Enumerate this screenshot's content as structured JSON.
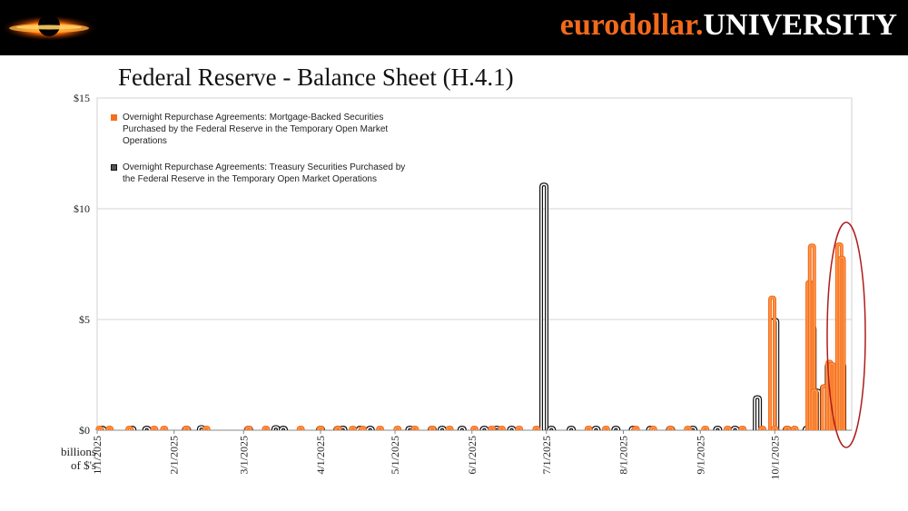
{
  "header": {
    "brand_part1": "eurodollar.",
    "brand_part2": "UNIVERSITY",
    "logo_icon": "black-hole-logo-icon"
  },
  "title": "Federal Reserve - Balance Sheet (H.4.1)",
  "units_label_line1": "billions",
  "units_label_line2": "of $'s",
  "legend": {
    "mbs": "Overnight Repurchase Agreements: Mortgage-Backed Securities Purchased by the Federal Reserve in the Temporary Open Market Operations",
    "tsy": "Overnight Repurchase Agreements: Treasury Securities Purchased by the Federal Reserve in the Temporary Open Market Operations"
  },
  "colors": {
    "mbs": "#f36f1e",
    "tsy": "#111111",
    "highlight_ring": "#b01c1c"
  },
  "chart_data": {
    "type": "line",
    "title": "Federal Reserve - Balance Sheet (H.4.1)",
    "ylabel": "billions of $'s",
    "ylim": [
      0,
      15
    ],
    "x_range": [
      "2025-01-01",
      "2025-11-01"
    ],
    "y_ticks": [
      "$0",
      "$5",
      "$10",
      "$15"
    ],
    "y_tick_values": [
      0,
      5,
      10,
      15
    ],
    "x_ticks": [
      "1/1/2025",
      "2/1/2025",
      "3/1/2025",
      "4/1/2025",
      "5/1/2025",
      "6/1/2025",
      "7/1/2025",
      "8/1/2025",
      "9/1/2025",
      "10/1/2025"
    ],
    "x_tick_dates": [
      "2025-01-01",
      "2025-02-01",
      "2025-03-01",
      "2025-04-01",
      "2025-05-01",
      "2025-06-01",
      "2025-07-01",
      "2025-08-01",
      "2025-09-01",
      "2025-10-01"
    ],
    "grid": true,
    "legend_position": "top-left",
    "series": [
      {
        "name": "Overnight Repurchase Agreements: Mortgage-Backed Securities Purchased by the Federal Reserve in the Temporary Open Market Operations",
        "color": "#f36f1e",
        "points": [
          [
            "2025-01-02",
            0.01
          ],
          [
            "2025-01-06",
            0.02
          ],
          [
            "2025-01-14",
            0.01
          ],
          [
            "2025-01-24",
            0.01
          ],
          [
            "2025-01-28",
            0.01
          ],
          [
            "2025-02-06",
            0.02
          ],
          [
            "2025-02-14",
            0.01
          ],
          [
            "2025-03-03",
            0.02
          ],
          [
            "2025-03-10",
            0.01
          ],
          [
            "2025-03-24",
            0.01
          ],
          [
            "2025-04-01",
            0.02
          ],
          [
            "2025-04-08",
            0.01
          ],
          [
            "2025-04-14",
            0.01
          ],
          [
            "2025-04-18",
            0.01
          ],
          [
            "2025-04-25",
            0.01
          ],
          [
            "2025-05-02",
            0.02
          ],
          [
            "2025-05-09",
            0.01
          ],
          [
            "2025-05-16",
            0.01
          ],
          [
            "2025-05-23",
            0.01
          ],
          [
            "2025-06-02",
            0.01
          ],
          [
            "2025-06-09",
            0.02
          ],
          [
            "2025-06-13",
            0.01
          ],
          [
            "2025-06-20",
            0.01
          ],
          [
            "2025-06-27",
            0.02
          ],
          [
            "2025-07-18",
            0.01
          ],
          [
            "2025-07-25",
            0.01
          ],
          [
            "2025-08-06",
            0.01
          ],
          [
            "2025-08-13",
            0.01
          ],
          [
            "2025-08-20",
            0.02
          ],
          [
            "2025-08-27",
            0.01
          ],
          [
            "2025-09-03",
            0.01
          ],
          [
            "2025-09-12",
            0.01
          ],
          [
            "2025-09-18",
            0.01
          ],
          [
            "2025-09-26",
            0.01
          ],
          [
            "2025-09-30",
            6.0
          ],
          [
            "2025-10-01",
            0.01
          ],
          [
            "2025-10-06",
            0.01
          ],
          [
            "2025-10-09",
            0.02
          ],
          [
            "2025-10-15",
            6.7
          ],
          [
            "2025-10-16",
            8.35
          ],
          [
            "2025-10-17",
            1.8
          ],
          [
            "2025-10-21",
            2.0
          ],
          [
            "2025-10-23",
            3.1
          ],
          [
            "2025-10-24",
            3.0
          ],
          [
            "2025-10-27",
            8.4
          ],
          [
            "2025-10-28",
            7.8
          ]
        ]
      },
      {
        "name": "Overnight Repurchase Agreements: Treasury Securities Purchased by the Federal Reserve in the Temporary Open Market Operations",
        "color": "#111111",
        "points": [
          [
            "2025-01-03",
            0.02
          ],
          [
            "2025-01-15",
            0.03
          ],
          [
            "2025-01-21",
            0.03
          ],
          [
            "2025-02-06",
            0.01
          ],
          [
            "2025-02-12",
            0.15
          ],
          [
            "2025-03-03",
            0.02
          ],
          [
            "2025-03-14",
            0.15
          ],
          [
            "2025-03-17",
            0.1
          ],
          [
            "2025-04-01",
            0.03
          ],
          [
            "2025-04-08",
            0.05
          ],
          [
            "2025-04-10",
            0.12
          ],
          [
            "2025-04-17",
            0.02
          ],
          [
            "2025-04-21",
            0.02
          ],
          [
            "2025-05-07",
            0.03
          ],
          [
            "2025-05-16",
            0.03
          ],
          [
            "2025-05-20",
            0.02
          ],
          [
            "2025-05-28",
            0.03
          ],
          [
            "2025-06-06",
            0.01
          ],
          [
            "2025-06-11",
            0.03
          ],
          [
            "2025-06-17",
            0.1
          ],
          [
            "2025-06-30",
            11.1
          ],
          [
            "2025-07-03",
            0.05
          ],
          [
            "2025-07-11",
            0.03
          ],
          [
            "2025-07-21",
            0.02
          ],
          [
            "2025-07-29",
            0.02
          ],
          [
            "2025-08-05",
            0.02
          ],
          [
            "2025-08-12",
            0.02
          ],
          [
            "2025-08-20",
            0.02
          ],
          [
            "2025-08-29",
            0.02
          ],
          [
            "2025-09-08",
            0.02
          ],
          [
            "2025-09-15",
            0.03
          ],
          [
            "2025-09-24",
            1.5
          ],
          [
            "2025-10-01",
            5.0
          ],
          [
            "2025-10-06",
            0.03
          ],
          [
            "2025-10-14",
            0.02
          ],
          [
            "2025-10-16",
            4.7
          ],
          [
            "2025-10-18",
            1.8
          ],
          [
            "2025-10-21",
            2.0
          ],
          [
            "2025-10-23",
            3.0
          ],
          [
            "2025-10-28",
            3.0
          ]
        ]
      }
    ]
  }
}
